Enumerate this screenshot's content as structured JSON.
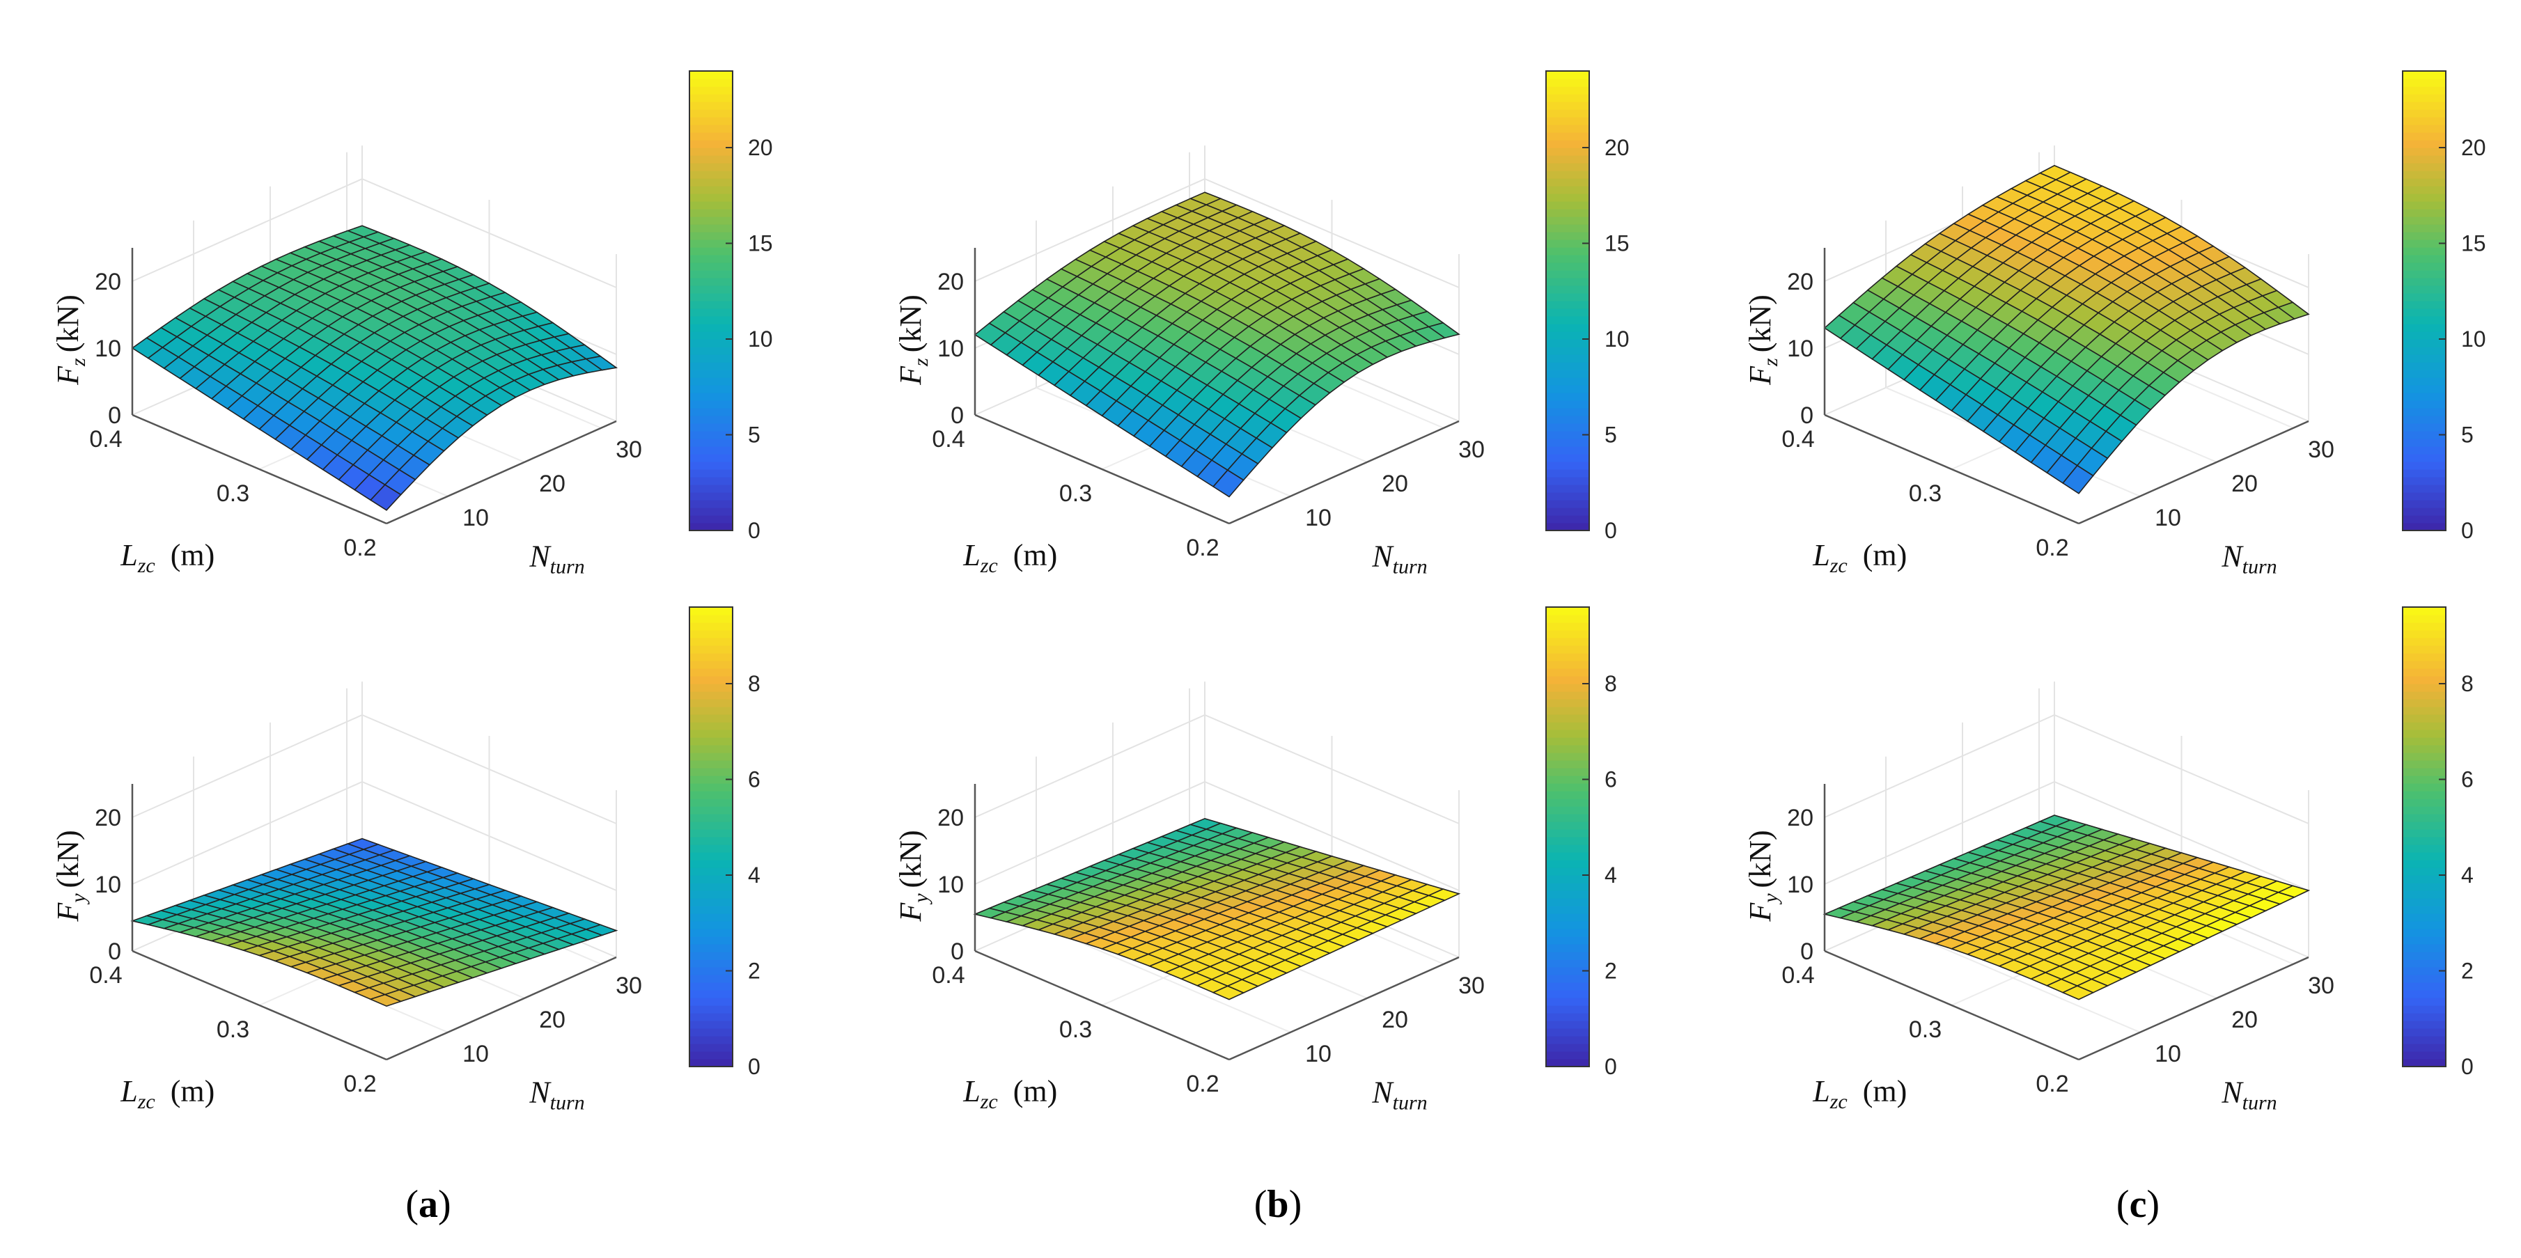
{
  "figure": {
    "panel_labels": [
      "(a)",
      "(b)",
      "(c)"
    ],
    "lzc_unit": "(m)",
    "fz_label_main": "F",
    "fz_label_sub": "z",
    "fy_label_main": "F",
    "fy_label_sub": "y",
    "force_unit": "(kN)",
    "lzc_label_main": "L",
    "lzc_label_sub": "zc",
    "nturn_label_main": "N",
    "nturn_label_sub": "turn"
  },
  "chart_data": [
    {
      "type": "surface",
      "panel": "a",
      "quantity": "Fz",
      "zlabel": "F_z (kN)",
      "xlabel": "L_zc (m)",
      "ylabel": "N_turn",
      "x_ticks": [
        "0.2",
        "0.3",
        "0.4"
      ],
      "y_ticks": [
        "10",
        "20",
        "30"
      ],
      "z_ticks": [
        "0",
        "10",
        "20"
      ],
      "xlim": [
        0.2,
        0.4
      ],
      "ylim": [
        2,
        32
      ],
      "zlim": [
        0,
        25
      ],
      "corner_values": {
        "lzc_0.2_n_2": 2.0,
        "lzc_0.4_n_2": 10.0,
        "lzc_0.4_n_32": 13.0,
        "lzc_0.2_n_32": 8.0
      },
      "clim": [
        0,
        24
      ],
      "colorbar_ticks": [
        "0",
        "5",
        "10",
        "15",
        "20"
      ]
    },
    {
      "type": "surface",
      "panel": "b",
      "quantity": "Fz",
      "zlabel": "F_z (kN)",
      "xlabel": "L_zc (m)",
      "ylabel": "N_turn",
      "x_ticks": [
        "0.2",
        "0.3",
        "0.4"
      ],
      "y_ticks": [
        "10",
        "20",
        "30"
      ],
      "z_ticks": [
        "0",
        "10",
        "20"
      ],
      "xlim": [
        0.2,
        0.4
      ],
      "ylim": [
        2,
        32
      ],
      "zlim": [
        0,
        25
      ],
      "corner_values": {
        "lzc_0.2_n_2": 4.0,
        "lzc_0.4_n_2": 12.0,
        "lzc_0.4_n_32": 18.0,
        "lzc_0.2_n_32": 13.0
      },
      "clim": [
        0,
        24
      ],
      "colorbar_ticks": [
        "0",
        "5",
        "10",
        "15",
        "20"
      ]
    },
    {
      "type": "surface",
      "panel": "c",
      "quantity": "Fz",
      "zlabel": "F_z (kN)",
      "xlabel": "L_zc (m)",
      "ylabel": "N_turn",
      "x_ticks": [
        "0.2",
        "0.3",
        "0.4"
      ],
      "y_ticks": [
        "10",
        "20",
        "30"
      ],
      "z_ticks": [
        "0",
        "10",
        "20"
      ],
      "xlim": [
        0.2,
        0.4
      ],
      "ylim": [
        2,
        32
      ],
      "zlim": [
        0,
        25
      ],
      "corner_values": {
        "lzc_0.2_n_2": 4.5,
        "lzc_0.4_n_2": 13.0,
        "lzc_0.4_n_32": 22.0,
        "lzc_0.2_n_32": 16.0
      },
      "clim": [
        0,
        24
      ],
      "colorbar_ticks": [
        "0",
        "5",
        "10",
        "15",
        "20"
      ]
    },
    {
      "type": "surface",
      "panel": "a",
      "quantity": "Fy",
      "zlabel": "F_y (kN)",
      "xlabel": "L_zc (m)",
      "ylabel": "N_turn",
      "x_ticks": [
        "0.2",
        "0.3",
        "0.4"
      ],
      "y_ticks": [
        "10",
        "20",
        "30"
      ],
      "z_ticks": [
        "0",
        "10",
        "20"
      ],
      "xlim": [
        0.2,
        0.4
      ],
      "ylim": [
        2,
        32
      ],
      "zlim": [
        0,
        25
      ],
      "corner_values": {
        "lzc_0.2_n_2": 8.0,
        "lzc_0.4_n_2": 4.5,
        "lzc_0.4_n_32": 1.5,
        "lzc_0.2_n_32": 4.0
      },
      "clim": [
        0,
        9.6
      ],
      "colorbar_ticks": [
        "0",
        "2",
        "4",
        "6",
        "8"
      ]
    },
    {
      "type": "surface",
      "panel": "b",
      "quantity": "Fy",
      "zlabel": "F_y (kN)",
      "xlabel": "L_zc (m)",
      "ylabel": "N_turn",
      "x_ticks": [
        "0.2",
        "0.3",
        "0.4"
      ],
      "y_ticks": [
        "10",
        "20",
        "30"
      ],
      "z_ticks": [
        "0",
        "10",
        "20"
      ],
      "xlim": [
        0.2,
        0.4
      ],
      "ylim": [
        2,
        32
      ],
      "zlim": [
        0,
        25
      ],
      "corner_values": {
        "lzc_0.2_n_2": 9.0,
        "lzc_0.4_n_2": 5.5,
        "lzc_0.4_n_32": 4.5,
        "lzc_0.2_n_32": 9.5
      },
      "clim": [
        0,
        9.6
      ],
      "colorbar_ticks": [
        "0",
        "2",
        "4",
        "6",
        "8"
      ]
    },
    {
      "type": "surface",
      "panel": "c",
      "quantity": "Fy",
      "zlabel": "F_y (kN)",
      "xlabel": "L_zc (m)",
      "ylabel": "N_turn",
      "x_ticks": [
        "0.2",
        "0.3",
        "0.4"
      ],
      "y_ticks": [
        "10",
        "20",
        "30"
      ],
      "z_ticks": [
        "0",
        "10",
        "20"
      ],
      "xlim": [
        0.2,
        0.4
      ],
      "ylim": [
        2,
        32
      ],
      "zlim": [
        0,
        25
      ],
      "corner_values": {
        "lzc_0.2_n_2": 9.0,
        "lzc_0.4_n_2": 5.5,
        "lzc_0.4_n_32": 5.0,
        "lzc_0.2_n_32": 10.0
      },
      "clim": [
        0,
        9.6
      ],
      "colorbar_ticks": [
        "0",
        "2",
        "4",
        "6",
        "8"
      ]
    }
  ]
}
